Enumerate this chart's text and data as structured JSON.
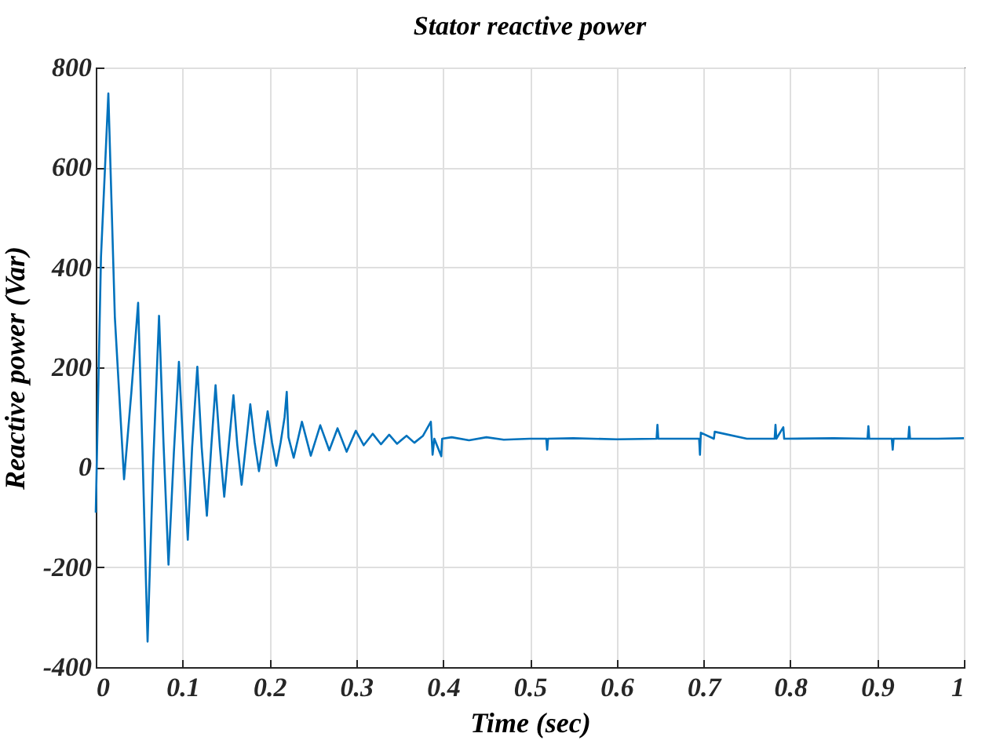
{
  "chart_data": {
    "type": "line",
    "title": "Stator reactive power",
    "xlabel": "Time (sec)",
    "ylabel": "Reactive power (Var)",
    "xlim": [
      0,
      1
    ],
    "ylim": [
      -400,
      800
    ],
    "xticks": [
      0,
      0.1,
      0.2,
      0.3,
      0.4,
      0.5,
      0.6,
      0.7,
      0.8,
      0.9,
      1
    ],
    "yticks": [
      -400,
      -200,
      0,
      200,
      400,
      600,
      800
    ],
    "grid": true,
    "series": [
      {
        "color": "#0072bd",
        "x": [
          0,
          0.006,
          0.0145,
          0.022,
          0.0326,
          0.041,
          0.0488,
          0.054,
          0.0597,
          0.066,
          0.0729,
          0.078,
          0.0838,
          0.09,
          0.0958,
          0.101,
          0.106,
          0.111,
          0.117,
          0.122,
          0.128,
          0.133,
          0.138,
          0.143,
          0.148,
          0.153,
          0.1586,
          0.163,
          0.168,
          0.173,
          0.178,
          0.183,
          0.188,
          0.193,
          0.198,
          0.203,
          0.208,
          0.213,
          0.2175,
          0.22,
          0.222,
          0.228,
          0.2375,
          0.2477,
          0.2586,
          0.269,
          0.2785,
          0.289,
          0.2996,
          0.3087,
          0.319,
          0.3285,
          0.338,
          0.347,
          0.358,
          0.367,
          0.377,
          0.386,
          0.388,
          0.39,
          0.398,
          0.399,
          0.41,
          0.43,
          0.45,
          0.47,
          0.5,
          0.519,
          0.52,
          0.521,
          0.55,
          0.6,
          0.646,
          0.647,
          0.648,
          0.67,
          0.695,
          0.696,
          0.697,
          0.712,
          0.713,
          0.75,
          0.782,
          0.783,
          0.784,
          0.792,
          0.793,
          0.85,
          0.889,
          0.89,
          0.891,
          0.917,
          0.918,
          0.919,
          0.936,
          0.937,
          0.938,
          0.97,
          1
        ],
        "values": [
          -91,
          420,
          748,
          300,
          -24,
          150,
          329,
          20,
          -349,
          0,
          303,
          50,
          -195,
          30,
          211,
          30,
          -145,
          40,
          201,
          40,
          -97,
          40,
          164,
          40,
          -59,
          40,
          144,
          45,
          -35,
          45,
          126,
          50,
          -8,
          50,
          112,
          50,
          3,
          50,
          100,
          151,
          60,
          19,
          91,
          23,
          84,
          34,
          78,
          31,
          73,
          44,
          67,
          46,
          65,
          47,
          63,
          49,
          63,
          91,
          25,
          57,
          22,
          57,
          60,
          54,
          60,
          55,
          57,
          57,
          35,
          57,
          58,
          56,
          57,
          85,
          57,
          57,
          57,
          25,
          69,
          57,
          71,
          57,
          57,
          85,
          57,
          80,
          57,
          58,
          57,
          82,
          57,
          57,
          35,
          57,
          57,
          81,
          57,
          57,
          58
        ]
      }
    ]
  }
}
